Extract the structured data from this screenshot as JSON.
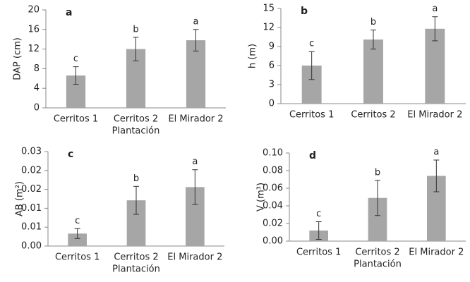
{
  "chart_data": [
    {
      "type": "bar",
      "panel_label": "a",
      "ylabel": "DAP (cm)",
      "xlabel": "Plantación",
      "categories": [
        "Cerritos 1",
        "Cerritos 2",
        "El Mirador 2"
      ],
      "values": [
        6.6,
        12.0,
        13.8
      ],
      "errors": [
        1.8,
        2.4,
        2.2
      ],
      "sig_letters": [
        "c",
        "b",
        "a"
      ],
      "color": "#a6a6a6",
      "ylim": [
        0,
        20
      ],
      "yticks": [
        0,
        4,
        8,
        12,
        16,
        20
      ]
    },
    {
      "type": "bar",
      "panel_label": "b",
      "ylabel": "h (m)",
      "categories": [
        "Cerritos 1",
        "Cerritos 2",
        "El Mirador 2"
      ],
      "values": [
        6.0,
        10.1,
        11.8
      ],
      "errors": [
        2.2,
        1.5,
        1.9
      ],
      "sig_letters": [
        "c",
        "b",
        "a"
      ],
      "color": "#a6a6a6",
      "ylim": [
        0,
        15
      ],
      "yticks": [
        0,
        3,
        6,
        9,
        12,
        15
      ]
    },
    {
      "type": "bar",
      "panel_label": "c",
      "ylabel": "AB (m²)",
      "xlabel": "Plantación",
      "categories": [
        "Cerritos 1",
        "Cerritos 2",
        "El Mirador 2"
      ],
      "values": [
        0.0033,
        0.0121,
        0.0156
      ],
      "errors": [
        0.0013,
        0.0037,
        0.0046
      ],
      "sig_letters": [
        "c",
        "b",
        "a"
      ],
      "color": "#a6a6a6",
      "ylim": [
        0,
        0.025
      ],
      "yticks": [
        {
          "value": 0,
          "label": "0.00"
        },
        {
          "value": 0.005,
          "label": "0.01"
        },
        {
          "value": 0.01,
          "label": "0.01"
        },
        {
          "value": 0.015,
          "label": "0.02"
        },
        {
          "value": 0.02,
          "label": "0.02"
        },
        {
          "value": 0.025,
          "label": "0.03"
        }
      ]
    },
    {
      "type": "bar",
      "panel_label": "d",
      "ylabel": "V (m³)",
      "xlabel": "Plantación",
      "categories": [
        "Cerritos 1",
        "Cerritos 2",
        "El Mirador 2"
      ],
      "values": [
        0.012,
        0.049,
        0.074
      ],
      "errors": [
        0.01,
        0.02,
        0.018
      ],
      "sig_letters": [
        "c",
        "b",
        "a"
      ],
      "color": "#a6a6a6",
      "ylim": [
        0,
        0.1
      ],
      "yticks": [
        {
          "value": 0,
          "label": "0.00"
        },
        {
          "value": 0.02,
          "label": "0.02"
        },
        {
          "value": 0.04,
          "label": "0.04"
        },
        {
          "value": 0.06,
          "label": "0.06"
        },
        {
          "value": 0.08,
          "label": "0.08"
        },
        {
          "value": 0.1,
          "label": "0.10"
        }
      ]
    }
  ]
}
